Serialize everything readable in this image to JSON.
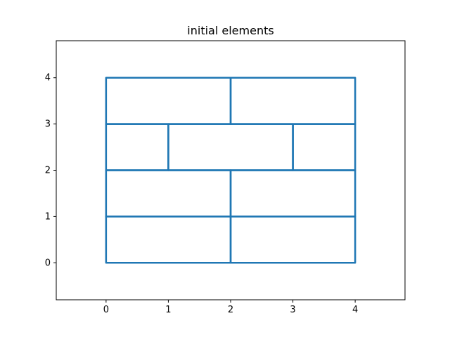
{
  "chart_data": {
    "type": "line",
    "title": "initial elements",
    "xlabel": "",
    "ylabel": "",
    "xlim": [
      -0.8,
      4.8
    ],
    "ylim": [
      -0.8,
      4.8
    ],
    "xticks": [
      0,
      1,
      2,
      3,
      4
    ],
    "yticks": [
      0,
      1,
      2,
      3,
      4
    ],
    "grid": false,
    "legend": "none",
    "color": "#1f77b4",
    "elements": [
      [
        [
          0,
          0
        ],
        [
          2,
          0
        ],
        [
          2,
          1
        ],
        [
          0,
          1
        ]
      ],
      [
        [
          2,
          0
        ],
        [
          4,
          0
        ],
        [
          4,
          1
        ],
        [
          2,
          1
        ]
      ],
      [
        [
          0,
          1
        ],
        [
          2,
          1
        ],
        [
          2,
          2
        ],
        [
          0,
          2
        ]
      ],
      [
        [
          2,
          1
        ],
        [
          4,
          1
        ],
        [
          4,
          2
        ],
        [
          2,
          2
        ]
      ],
      [
        [
          0,
          2
        ],
        [
          1,
          2
        ],
        [
          1,
          3
        ],
        [
          0,
          3
        ]
      ],
      [
        [
          1,
          2
        ],
        [
          3,
          2
        ],
        [
          3,
          3
        ],
        [
          1,
          3
        ]
      ],
      [
        [
          3,
          2
        ],
        [
          4,
          2
        ],
        [
          4,
          3
        ],
        [
          3,
          3
        ]
      ],
      [
        [
          0,
          3
        ],
        [
          2,
          3
        ],
        [
          2,
          4
        ],
        [
          0,
          4
        ]
      ],
      [
        [
          2,
          3
        ],
        [
          4,
          3
        ],
        [
          4,
          4
        ],
        [
          2,
          4
        ]
      ]
    ]
  }
}
